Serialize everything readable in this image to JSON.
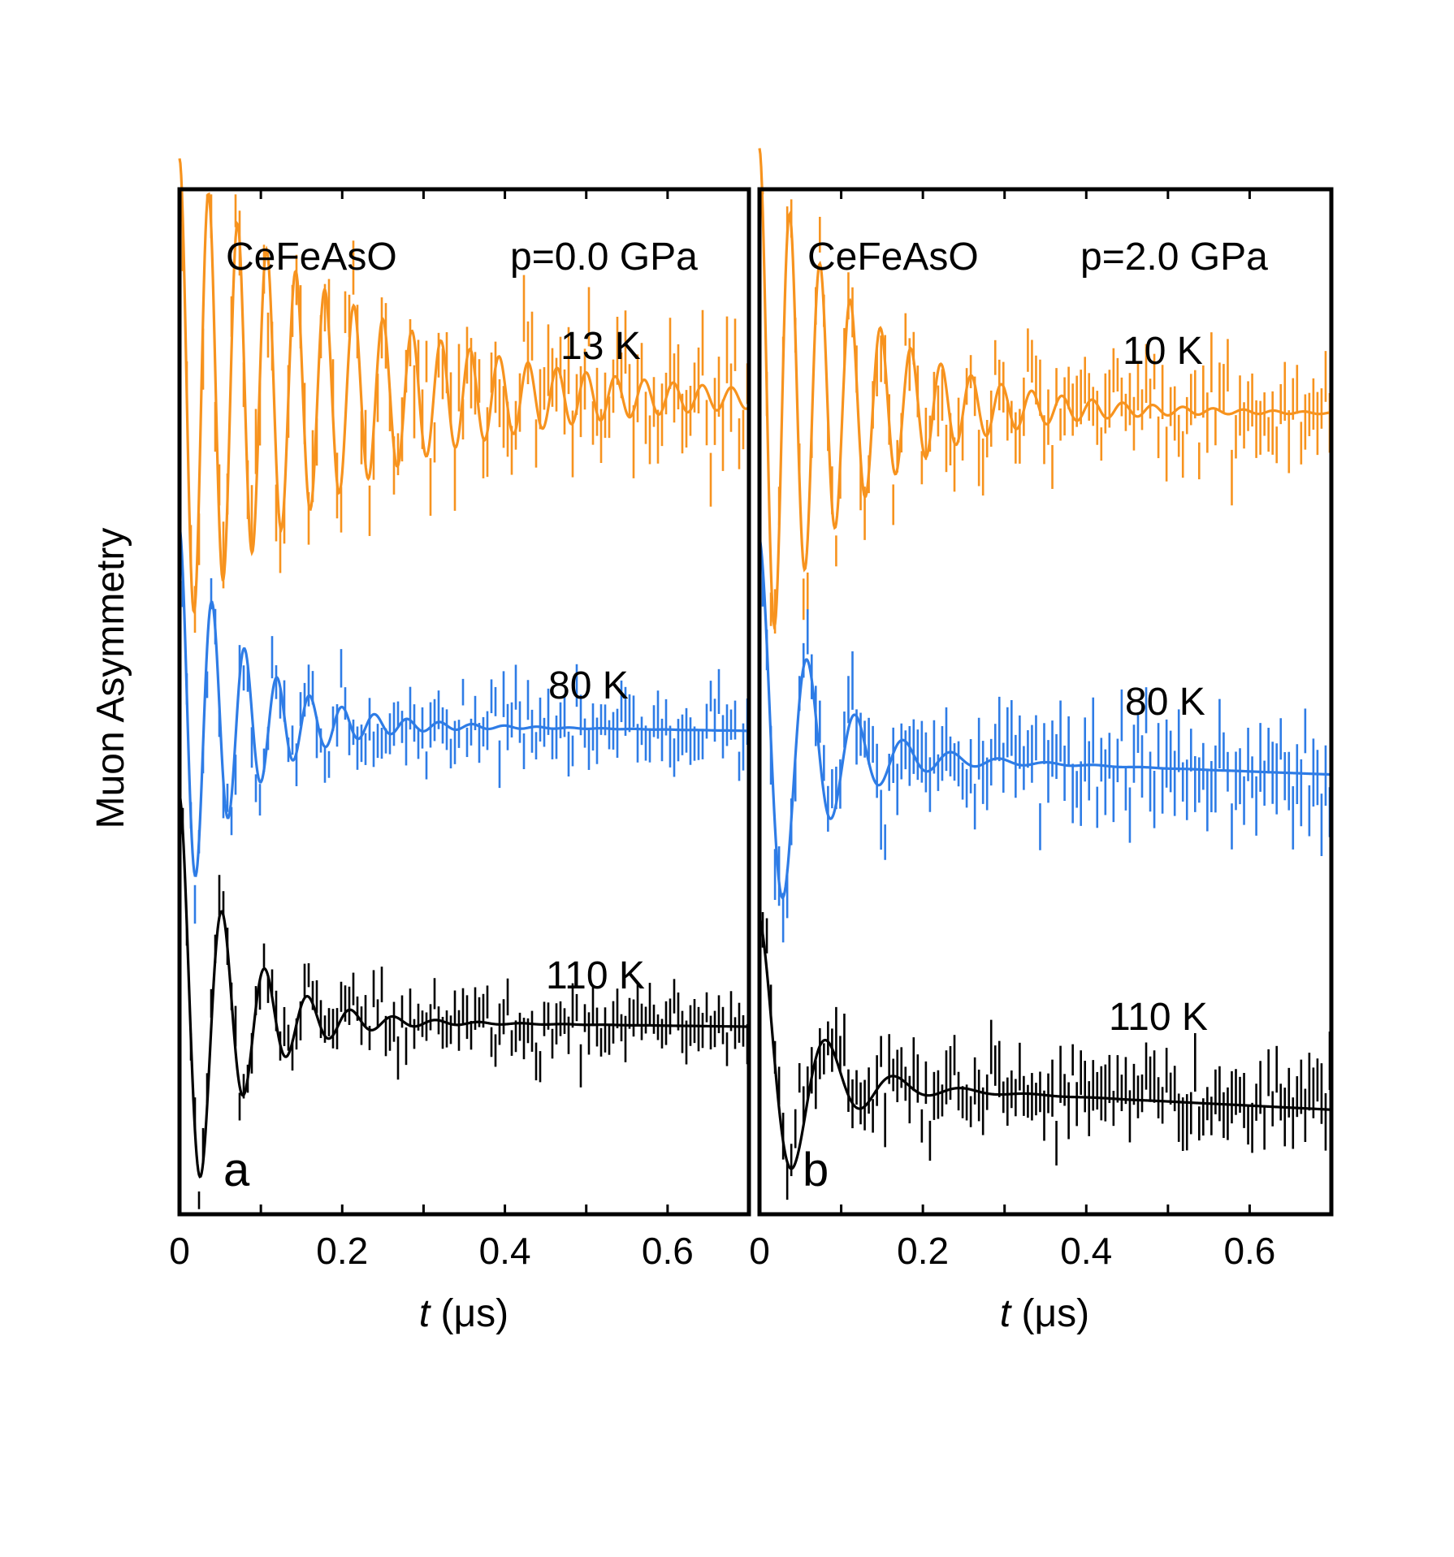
{
  "figure": {
    "y_axis_label": "Muon Asymmetry"
  },
  "chart_data": [
    {
      "type": "line",
      "panel_label": "a",
      "sample": "CeFeAsO",
      "pressure": "p=0.0 GPa",
      "xlabel_var": "t",
      "xlabel_unit": " (μs)",
      "ylabel": "Muon Asymmetry",
      "xlim": [
        0,
        0.7
      ],
      "x_ticks": [
        0,
        0.2,
        0.4,
        0.6
      ],
      "x_tick_labels": [
        "0",
        "0.2",
        "0.4",
        "0.6"
      ],
      "series": [
        {
          "name": "13 K",
          "label": "13 K",
          "color": "#F7931E",
          "offset": 0.8,
          "amp": 0.23,
          "freq": 28,
          "damp": 4.5,
          "phase": 0,
          "slope": 0.006,
          "noise": 0.055,
          "noise_growth": 0.0,
          "seed": 11
        },
        {
          "name": "80 K",
          "label": "80 K",
          "color": "#2E7CE6",
          "offset": 0.48,
          "amp": 0.19,
          "freq": 25,
          "damp": 12,
          "phase": 0,
          "slope": 0.012,
          "noise": 0.03,
          "noise_growth": 0.05,
          "seed": 23
        },
        {
          "name": "110 K",
          "label": "110 K",
          "color": "#000000",
          "offset": 0.19,
          "amp": 0.22,
          "freq": 19,
          "damp": 14,
          "phase": 0,
          "slope": 0.01,
          "noise": 0.03,
          "noise_growth": 0.03,
          "seed": 37
        }
      ]
    },
    {
      "type": "line",
      "panel_label": "b",
      "sample": "CeFeAsO",
      "pressure": "p=2.0 GPa",
      "xlabel_var": "t",
      "xlabel_unit": " (μs)",
      "ylabel": "Muon Asymmetry",
      "xlim": [
        0,
        0.7
      ],
      "x_ticks": [
        0,
        0.2,
        0.4,
        0.6
      ],
      "x_tick_labels": [
        "0",
        "0.2",
        "0.4",
        "0.6"
      ],
      "series": [
        {
          "name": "10 K",
          "label": "10 K",
          "color": "#F7931E",
          "offset": 0.79,
          "amp": 0.25,
          "freq": 27,
          "damp": 8,
          "phase": 0,
          "slope": 0.012,
          "noise": 0.04,
          "noise_growth": 0.03,
          "seed": 53
        },
        {
          "name": "80 K",
          "label": "80 K",
          "color": "#2E7CE6",
          "offset": 0.45,
          "amp": 0.21,
          "freq": 17,
          "damp": 14,
          "phase": 0,
          "slope": 0.03,
          "noise": 0.045,
          "noise_growth": 0.03,
          "seed": 71
        },
        {
          "name": "110 K",
          "label": "110 K",
          "color": "#000000",
          "offset": 0.13,
          "amp": 0.16,
          "freq": 12,
          "damp": 16,
          "phase": 0,
          "slope": 0.04,
          "noise": 0.04,
          "noise_growth": 0.02,
          "seed": 97
        }
      ]
    }
  ]
}
